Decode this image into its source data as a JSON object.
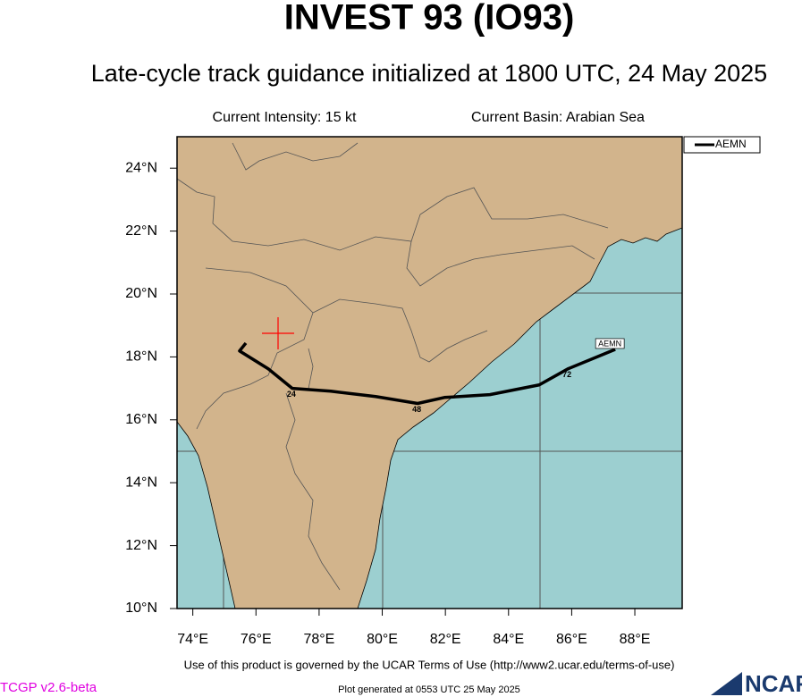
{
  "chart_data": {
    "type": "line",
    "title": "INVEST 93 (IO93)",
    "subtitle": "Late-cycle track guidance initialized at 1800 UTC, 24 May 2025",
    "annotations": [
      "Current Intensity: 15 kt",
      "Current Basin: Arabian Sea"
    ],
    "x": [
      75.68,
      75.48,
      76.39,
      77.15,
      78.37,
      79.79,
      81.12,
      81.97,
      83.41,
      84.97,
      85.88,
      87.38
    ],
    "series": [
      {
        "name": "AEMN",
        "color": "#000000",
        "values": [
          18.44,
          18.19,
          17.62,
          17.0,
          16.91,
          16.74,
          16.52,
          16.71,
          16.8,
          17.11,
          17.62,
          18.24
        ],
        "point_labels": [
          null,
          null,
          null,
          "24",
          null,
          null,
          "48",
          null,
          null,
          null,
          "72",
          null
        ]
      }
    ],
    "current_position": {
      "x": 76.7,
      "y": 18.75,
      "color": "#ff0000"
    },
    "xlim": [
      73.5,
      89.5
    ],
    "ylim": [
      10,
      25
    ],
    "xticks": [
      {
        "value": 74,
        "label": "74°E"
      },
      {
        "value": 76,
        "label": "76°E"
      },
      {
        "value": 78,
        "label": "78°E"
      },
      {
        "value": 80,
        "label": "80°E"
      },
      {
        "value": 82,
        "label": "82°E"
      },
      {
        "value": 84,
        "label": "84°E"
      },
      {
        "value": 86,
        "label": "86°E"
      },
      {
        "value": 88,
        "label": "88°E"
      }
    ],
    "yticks": [
      {
        "value": 10,
        "label": "10°N"
      },
      {
        "value": 12,
        "label": "12°N"
      },
      {
        "value": 14,
        "label": "14°N"
      },
      {
        "value": 16,
        "label": "16°N"
      },
      {
        "value": 18,
        "label": "18°N"
      },
      {
        "value": 20,
        "label": "20°N"
      },
      {
        "value": 22,
        "label": "22°N"
      },
      {
        "value": 24,
        "label": "24°N"
      }
    ],
    "legend": "outside-top-right",
    "footer": "Use of this product is governed by the UCAR Terms of Use (http://www2.ucar.edu/terms-of-use)",
    "version": "TCGP v2.6-beta",
    "generated": "Plot generated at 0553 UTC   25 May 2025",
    "logo": "NCAR"
  }
}
